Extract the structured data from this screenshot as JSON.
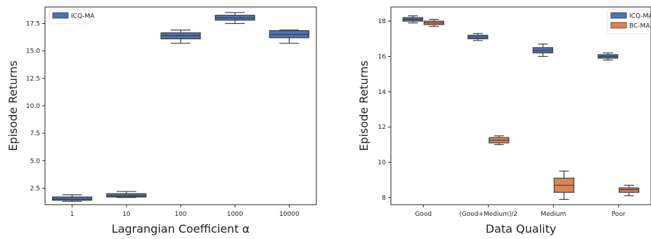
{
  "chart_data": [
    {
      "type": "box",
      "xlabel": "Lagrangian Coefficient α",
      "ylabel": "Episode Returns",
      "categories": [
        "1",
        "10",
        "100",
        "1000",
        "10000"
      ],
      "ylim": [
        1.0,
        19.0
      ],
      "yticks": [
        2.5,
        5.0,
        7.5,
        10.0,
        12.5,
        15.0,
        17.5
      ],
      "ytick_labels": [
        "2.5",
        "5.0",
        "7.5",
        "10.0",
        "12.5",
        "15.0",
        "17.5"
      ],
      "legend_position": "top-left",
      "series": [
        {
          "name": "ICQ-MA",
          "color": "#4C72B0",
          "boxes": [
            {
              "whislo": 1.3,
              "q1": 1.4,
              "med": 1.5,
              "q3": 1.7,
              "whishi": 1.9
            },
            {
              "whislo": 1.65,
              "q1": 1.7,
              "med": 1.8,
              "q3": 2.0,
              "whishi": 2.2
            },
            {
              "whislo": 15.7,
              "q1": 16.1,
              "med": 16.4,
              "q3": 16.65,
              "whishi": 16.9
            },
            {
              "whislo": 17.5,
              "q1": 17.8,
              "med": 18.0,
              "q3": 18.25,
              "whishi": 18.5
            },
            {
              "whislo": 15.7,
              "q1": 16.2,
              "med": 16.5,
              "q3": 16.85,
              "whishi": 16.9
            }
          ]
        }
      ]
    },
    {
      "type": "box",
      "xlabel": "Data Quality",
      "ylabel": "Episode Returns",
      "categories": [
        "Good",
        "(Good+Medium)/2",
        "Medium",
        "Poor"
      ],
      "ylim": [
        7.6,
        18.8
      ],
      "yticks": [
        8,
        10,
        12,
        14,
        16,
        18
      ],
      "ytick_labels": [
        "8",
        "10",
        "12",
        "14",
        "16",
        "18"
      ],
      "legend_position": "top-right",
      "series": [
        {
          "name": "ICQ-MA",
          "color": "#4C72B0",
          "boxes": [
            {
              "whislo": 17.9,
              "q1": 18.0,
              "med": 18.1,
              "q3": 18.2,
              "whishi": 18.3
            },
            {
              "whislo": 16.9,
              "q1": 17.0,
              "med": 17.1,
              "q3": 17.2,
              "whishi": 17.3
            },
            {
              "whislo": 16.0,
              "q1": 16.2,
              "med": 16.35,
              "q3": 16.5,
              "whishi": 16.7
            },
            {
              "whislo": 15.8,
              "q1": 15.9,
              "med": 16.0,
              "q3": 16.1,
              "whishi": 16.2
            }
          ]
        },
        {
          "name": "BC-MA",
          "color": "#DD8452",
          "boxes": [
            {
              "whislo": 17.7,
              "q1": 17.8,
              "med": 17.9,
              "q3": 18.0,
              "whishi": 18.1
            },
            {
              "whislo": 11.0,
              "q1": 11.1,
              "med": 11.25,
              "q3": 11.4,
              "whishi": 11.5
            },
            {
              "whislo": 7.9,
              "q1": 8.3,
              "med": 8.7,
              "q3": 9.1,
              "whishi": 9.5
            },
            {
              "whislo": 8.1,
              "q1": 8.3,
              "med": 8.45,
              "q3": 8.55,
              "whishi": 8.7
            }
          ]
        }
      ]
    }
  ]
}
